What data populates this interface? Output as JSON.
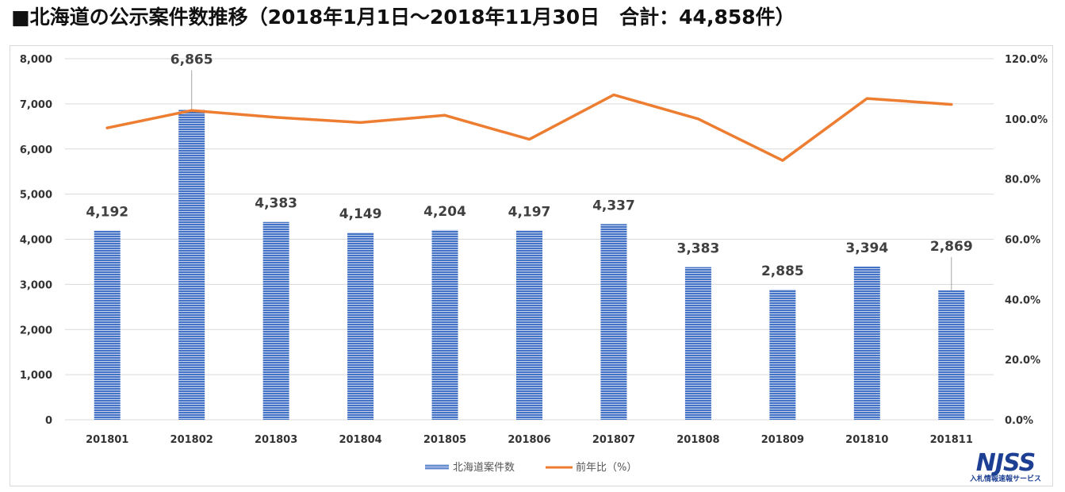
{
  "title": "■北海道の公示案件数推移（2018年1月1日～2018年11月30日　合計：44,858件）",
  "logo": {
    "text": "NJSS",
    "subtext": "入札情報速報サービス",
    "color": "#1c3f94"
  },
  "chart_data": {
    "type": "bar",
    "categories": [
      "201801",
      "201802",
      "201803",
      "201804",
      "201805",
      "201806",
      "201807",
      "201808",
      "201809",
      "201810",
      "201811"
    ],
    "series": [
      {
        "name": "北海道案件数",
        "type": "bar",
        "axis": "left",
        "color": "#4472c4",
        "values": [
          4192,
          6865,
          4383,
          4149,
          4204,
          4197,
          4337,
          3383,
          2885,
          3394,
          2869
        ],
        "labels": [
          "4,192",
          "6,865",
          "4,383",
          "4,149",
          "4,204",
          "4,197",
          "4,337",
          "3,383",
          "2,885",
          "3,394",
          "2,869"
        ]
      },
      {
        "name": "前年比（%）",
        "type": "line",
        "axis": "right",
        "color": "#ed7d31",
        "values": [
          97.0,
          102.8,
          100.5,
          98.8,
          101.2,
          93.2,
          108.0,
          100.0,
          86.2,
          106.8,
          104.8
        ]
      }
    ],
    "ylim": [
      0,
      8000
    ],
    "yticks": [
      0,
      1000,
      2000,
      3000,
      4000,
      5000,
      6000,
      7000,
      8000
    ],
    "ytick_labels": [
      "0",
      "1,000",
      "2,000",
      "3,000",
      "4,000",
      "5,000",
      "6,000",
      "7,000",
      "8,000"
    ],
    "y2lim": [
      0,
      120
    ],
    "y2ticks": [
      0,
      20,
      40,
      60,
      80,
      100,
      120
    ],
    "y2tick_labels": [
      "0.0%",
      "20.0%",
      "40.0%",
      "60.0%",
      "80.0%",
      "100.0%",
      "120.0%"
    ],
    "grid": true,
    "legend_position": "bottom"
  }
}
